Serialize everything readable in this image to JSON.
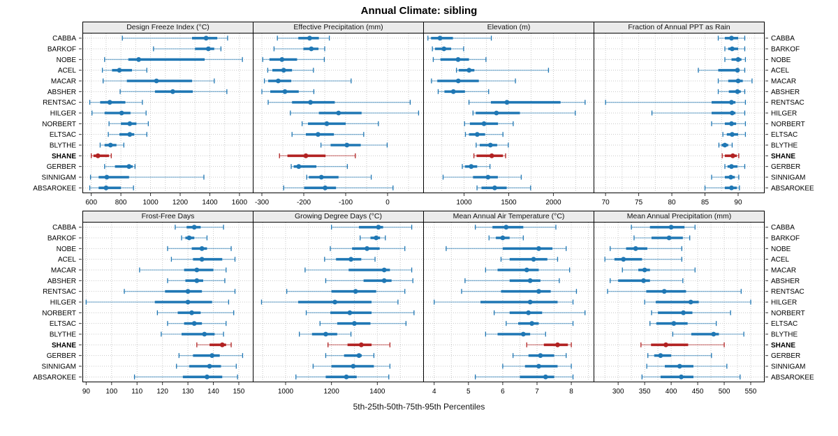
{
  "title": "Annual Climate: sibling",
  "caption": "5th-25th-50th-75th-95th Percentiles",
  "highlight_station": "SHANE",
  "colors": {
    "series": "#1f77b4",
    "highlight": "#b22222",
    "strip_bg": "#ebebeb",
    "grid": "#c8c8c8",
    "border": "#000000",
    "tick": "#333333"
  },
  "chart_data": {
    "type": "dotplot-percentiles",
    "layout": "2 rows x 4 columns of panels, shared station rows",
    "percentile_labels": [
      "5th",
      "25th",
      "50th",
      "75th",
      "95th"
    ],
    "rows": [
      "CABBA",
      "BARKOF",
      "NOBE",
      "ACEL",
      "MACAR",
      "ABSHER",
      "RENTSAC",
      "HILGER",
      "NORBERT",
      "ELTSAC",
      "BLYTHE",
      "SHANE",
      "GERBER",
      "SINNIGAM",
      "ABSAROKEE"
    ],
    "panels": [
      {
        "title": "Design Freeze Index (°C)",
        "ticks": [
          600,
          800,
          1000,
          1200,
          1400,
          1600
        ],
        "grid_step": 100,
        "domain": [
          545,
          1690
        ],
        "values": [
          [
            810,
            1280,
            1375,
            1450,
            1520
          ],
          [
            1020,
            1300,
            1390,
            1430,
            1475
          ],
          [
            690,
            850,
            920,
            1365,
            1620
          ],
          [
            675,
            740,
            790,
            875,
            975
          ],
          [
            680,
            840,
            1040,
            1280,
            1430
          ],
          [
            795,
            1030,
            1150,
            1285,
            1515
          ],
          [
            590,
            660,
            725,
            830,
            945
          ],
          [
            605,
            690,
            805,
            865,
            970
          ],
          [
            720,
            800,
            860,
            905,
            985
          ],
          [
            715,
            790,
            860,
            890,
            975
          ],
          [
            660,
            690,
            730,
            770,
            820
          ],
          [
            600,
            615,
            645,
            720,
            735
          ],
          [
            690,
            760,
            855,
            880,
            895
          ],
          [
            595,
            650,
            705,
            855,
            1360
          ],
          [
            590,
            650,
            700,
            800,
            885
          ]
        ]
      },
      {
        "title": "Effective Precipitation (mm)",
        "ticks": [
          -300,
          -200,
          -100,
          0
        ],
        "grid_step": 50,
        "domain": [
          -320,
          85
        ],
        "values": [
          [
            -263,
            -213,
            -186,
            -164,
            -139
          ],
          [
            -271,
            -201,
            -182,
            -165,
            -150
          ],
          [
            -298,
            -282,
            -252,
            -216,
            -151
          ],
          [
            -286,
            -275,
            -248,
            -228,
            -177
          ],
          [
            -294,
            -285,
            -261,
            -230,
            -87
          ],
          [
            -300,
            -280,
            -245,
            -212,
            -176
          ],
          [
            -285,
            -228,
            -184,
            -126,
            54
          ],
          [
            -232,
            -164,
            -117,
            -62,
            74
          ],
          [
            -204,
            -190,
            -145,
            -100,
            -22
          ],
          [
            -228,
            -195,
            -166,
            -128,
            -57
          ],
          [
            -159,
            -136,
            -97,
            -64,
            -1
          ],
          [
            -258,
            -239,
            -195,
            -148,
            -77
          ],
          [
            -230,
            -224,
            -212,
            -170,
            -96
          ],
          [
            -193,
            -188,
            -158,
            -117,
            -39
          ],
          [
            -248,
            -199,
            -149,
            -123,
            13
          ]
        ]
      },
      {
        "title": "Elevation (m)",
        "ticks": [
          1000,
          1500,
          2000
        ],
        "grid_step": 250,
        "domain": [
          550,
          2450
        ],
        "values": [
          [
            595,
            630,
            730,
            875,
            1305
          ],
          [
            645,
            675,
            775,
            855,
            995
          ],
          [
            655,
            735,
            933,
            1055,
            1245
          ],
          [
            915,
            940,
            1056,
            1115,
            1945
          ],
          [
            635,
            700,
            935,
            1165,
            1575
          ],
          [
            710,
            780,
            880,
            1010,
            1275
          ],
          [
            1055,
            1300,
            1480,
            2080,
            2355
          ],
          [
            1100,
            1130,
            1362,
            1625,
            2245
          ],
          [
            1005,
            1065,
            1223,
            1380,
            1550
          ],
          [
            1015,
            1055,
            1147,
            1235,
            1435
          ],
          [
            1135,
            1175,
            1295,
            1370,
            1495
          ],
          [
            1110,
            1140,
            1310,
            1435,
            1465
          ],
          [
            980,
            1010,
            1080,
            1147,
            1290
          ],
          [
            765,
            1100,
            1268,
            1378,
            1640
          ],
          [
            1145,
            1195,
            1343,
            1477,
            1745
          ]
        ]
      },
      {
        "title": "Fraction of Annual PPT as Rain",
        "ticks": [
          70,
          75,
          80,
          85,
          90
        ],
        "grid_step": 2.5,
        "domain": [
          68.3,
          93.9
        ],
        "values": [
          [
            87,
            88,
            89,
            90,
            91
          ],
          [
            88,
            88.5,
            89.1,
            90,
            91
          ],
          [
            88,
            89,
            90,
            90.5,
            91.1
          ],
          [
            84,
            87,
            89.9,
            90.2,
            91
          ],
          [
            87,
            88.5,
            90,
            90.7,
            92.1
          ],
          [
            87,
            88.6,
            89.9,
            90.4,
            91
          ],
          [
            70,
            86,
            89,
            89.6,
            91.1
          ],
          [
            77,
            86,
            89.1,
            89.6,
            91
          ],
          [
            86,
            88,
            89,
            89.7,
            91.1
          ],
          [
            87.7,
            88.3,
            89.1,
            90,
            91.1
          ],
          [
            87.1,
            87.5,
            88,
            88.5,
            89.1
          ],
          [
            87.6,
            88,
            89.2,
            89.8,
            90.1
          ],
          [
            88,
            88.4,
            89,
            89.9,
            91
          ],
          [
            86,
            88,
            88.9,
            89.5,
            90.1
          ],
          [
            85,
            88,
            89,
            89.8,
            90.2
          ]
        ]
      },
      {
        "title": "Frost-Free Days",
        "ticks": [
          90,
          100,
          110,
          120,
          130,
          140,
          150
        ],
        "grid_step": 10,
        "domain": [
          88.8,
          155.5
        ],
        "values": [
          [
            125,
            129.5,
            132.5,
            135,
            144
          ],
          [
            127.5,
            129,
            130.5,
            132.5,
            137.5
          ],
          [
            122,
            131.5,
            135.5,
            137.5,
            147
          ],
          [
            123.5,
            132,
            135.5,
            143.5,
            148.5
          ],
          [
            111,
            128.5,
            133.5,
            140,
            145
          ],
          [
            122,
            129,
            133.5,
            136,
            144.5
          ],
          [
            105,
            121,
            130,
            135.5,
            148.5
          ],
          [
            90,
            117,
            130,
            139.5,
            146
          ],
          [
            118,
            126,
            131.5,
            135,
            148
          ],
          [
            122,
            128.5,
            132.5,
            135.5,
            145
          ],
          [
            119.5,
            127.5,
            136.5,
            140.5,
            144
          ],
          [
            133.5,
            138.5,
            143.5,
            145,
            147
          ],
          [
            126.5,
            132,
            139.5,
            142.5,
            151.5
          ],
          [
            125.5,
            130.5,
            138.5,
            143,
            149
          ],
          [
            109,
            128,
            137.5,
            143.5,
            149.5
          ]
        ]
      },
      {
        "title": "Growing Degree Days (°C)",
        "ticks": [
          1000,
          1200,
          1400
        ],
        "grid_step": 100,
        "domain": [
          860,
          1600
        ],
        "values": [
          [
            1200,
            1320,
            1405,
            1425,
            1550
          ],
          [
            1325,
            1370,
            1395,
            1412,
            1435
          ],
          [
            1195,
            1290,
            1355,
            1410,
            1520
          ],
          [
            1170,
            1220,
            1285,
            1330,
            1390
          ],
          [
            1085,
            1275,
            1430,
            1455,
            1550
          ],
          [
            1175,
            1340,
            1430,
            1462,
            1555
          ],
          [
            1005,
            1200,
            1305,
            1395,
            1520
          ],
          [
            895,
            1055,
            1215,
            1375,
            1490
          ],
          [
            1090,
            1195,
            1280,
            1375,
            1560
          ],
          [
            1150,
            1225,
            1300,
            1370,
            1525
          ],
          [
            1060,
            1115,
            1175,
            1225,
            1285
          ],
          [
            1185,
            1270,
            1330,
            1375,
            1455
          ],
          [
            1175,
            1255,
            1320,
            1332,
            1385
          ],
          [
            1120,
            1200,
            1295,
            1385,
            1455
          ],
          [
            1045,
            1175,
            1265,
            1310,
            1450
          ]
        ]
      },
      {
        "title": "Mean Annual Air Temperature (°C)",
        "ticks": [
          4,
          5,
          6,
          7,
          8
        ],
        "grid_step": 0.5,
        "domain": [
          3.7,
          8.65
        ],
        "values": [
          [
            5.2,
            5.7,
            6.1,
            6.6,
            7.55
          ],
          [
            5.6,
            5.8,
            6.0,
            6.2,
            6.6
          ],
          [
            4.35,
            6.0,
            7.05,
            7.45,
            7.85
          ],
          [
            5.95,
            6.2,
            6.9,
            7.3,
            7.6
          ],
          [
            5.5,
            5.85,
            6.7,
            7.05,
            7.95
          ],
          [
            4.9,
            6.2,
            6.8,
            7.1,
            7.65
          ],
          [
            4.8,
            5.95,
            7.05,
            7.4,
            8.15
          ],
          [
            4.0,
            5.35,
            6.8,
            7.6,
            8.05
          ],
          [
            5.75,
            6.2,
            6.75,
            7.15,
            8.4
          ],
          [
            6.1,
            6.45,
            6.85,
            7.05,
            8.05
          ],
          [
            5.5,
            5.85,
            6.6,
            6.8,
            7.25
          ],
          [
            6.7,
            7.2,
            7.6,
            7.9,
            8.0
          ],
          [
            6.3,
            6.75,
            7.1,
            7.5,
            7.85
          ],
          [
            6.0,
            6.65,
            7.05,
            7.6,
            8.0
          ],
          [
            5.2,
            6.5,
            7.25,
            7.5,
            8.05
          ]
        ]
      },
      {
        "title": "Mean Annual Precipitation (mm)",
        "ticks": [
          300,
          350,
          400,
          450,
          500,
          550
        ],
        "grid_step": 25,
        "domain": [
          255,
          575
        ],
        "values": [
          [
            325,
            360,
            400,
            425,
            445
          ],
          [
            330,
            363,
            396,
            422,
            435
          ],
          [
            285,
            315,
            333,
            355,
            420
          ],
          [
            275,
            293,
            310,
            345,
            420
          ],
          [
            308,
            338,
            350,
            360,
            445
          ],
          [
            285,
            300,
            348,
            360,
            422
          ],
          [
            280,
            353,
            387,
            428,
            532
          ],
          [
            350,
            371,
            437,
            452,
            550
          ],
          [
            363,
            375,
            423,
            440,
            512
          ],
          [
            360,
            372,
            405,
            431,
            485
          ],
          [
            403,
            438,
            480,
            490,
            537
          ],
          [
            343,
            362,
            390,
            432,
            500
          ],
          [
            356,
            368,
            380,
            400,
            476
          ],
          [
            354,
            388,
            416,
            442,
            505
          ],
          [
            345,
            380,
            419,
            442,
            530
          ]
        ]
      }
    ]
  }
}
